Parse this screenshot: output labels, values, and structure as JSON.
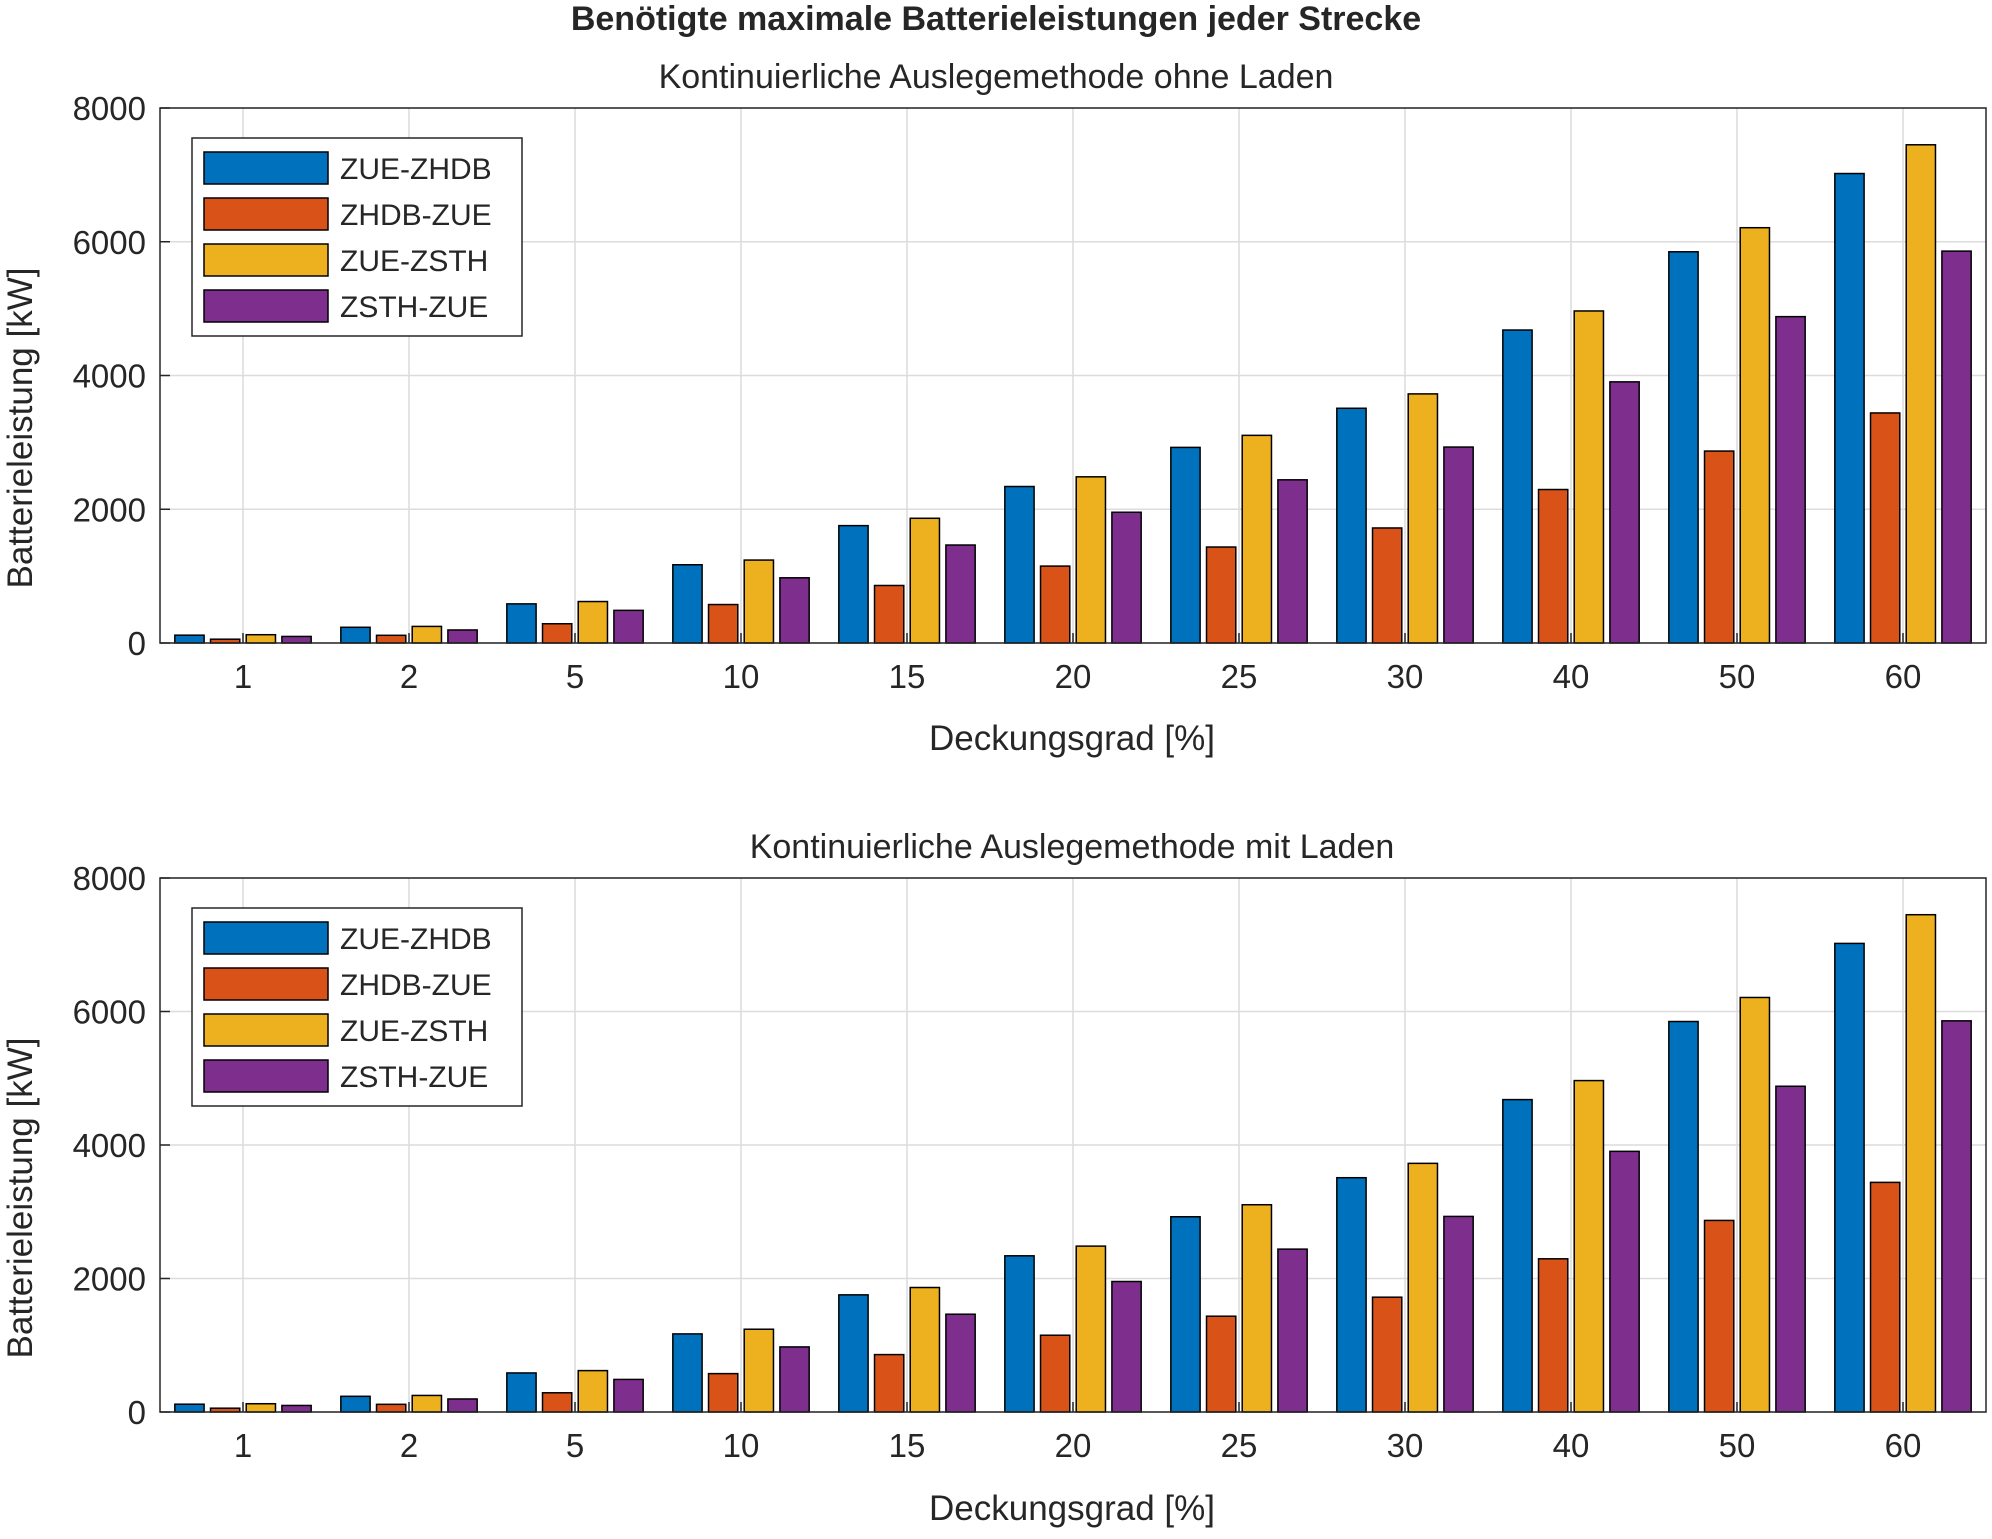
{
  "figure_title": "Benötigte maximale Batterieleistungen jeder Strecke",
  "series_colors": [
    "#0072BD",
    "#D95319",
    "#EDB120",
    "#7E2F8E"
  ],
  "chart_data": [
    {
      "type": "bar",
      "title": "Kontinuierliche Auslegemethode ohne Laden",
      "xlabel": "Deckungsgrad [%]",
      "ylabel": "Batterieleistung [kW]",
      "categories": [
        "1",
        "2",
        "5",
        "10",
        "15",
        "20",
        "25",
        "30",
        "40",
        "50",
        "60"
      ],
      "ylim": [
        0,
        8000
      ],
      "yticks": [
        "0",
        "2000",
        "4000",
        "6000",
        "8000"
      ],
      "grid": true,
      "legend_position": "top-left",
      "series": [
        {
          "name": "ZUE-ZHDB",
          "values": [
            117,
            235,
            585,
            1170,
            1755,
            2340,
            2925,
            3510,
            4680,
            5850,
            7020
          ]
        },
        {
          "name": "ZHDB-ZUE",
          "values": [
            57,
            115,
            288,
            575,
            860,
            1150,
            1435,
            1720,
            2295,
            2870,
            3440
          ]
        },
        {
          "name": "ZUE-ZSTH",
          "values": [
            124,
            248,
            620,
            1240,
            1865,
            2485,
            3105,
            3725,
            4965,
            6210,
            7450
          ]
        },
        {
          "name": "ZSTH-ZUE",
          "values": [
            98,
            195,
            488,
            975,
            1465,
            1955,
            2440,
            2930,
            3905,
            4880,
            5860
          ]
        }
      ]
    },
    {
      "type": "bar",
      "title": "Kontinuierliche Auslegemethode mit Laden",
      "xlabel": "Deckungsgrad [%]",
      "ylabel": "Batterieleistung [kW]",
      "categories": [
        "1",
        "2",
        "5",
        "10",
        "15",
        "20",
        "25",
        "30",
        "40",
        "50",
        "60"
      ],
      "ylim": [
        0,
        8000
      ],
      "yticks": [
        "0",
        "2000",
        "4000",
        "6000",
        "8000"
      ],
      "grid": true,
      "legend_position": "top-left",
      "series": [
        {
          "name": "ZUE-ZHDB",
          "values": [
            117,
            235,
            585,
            1170,
            1755,
            2340,
            2925,
            3510,
            4680,
            5850,
            7020
          ]
        },
        {
          "name": "ZHDB-ZUE",
          "values": [
            57,
            115,
            288,
            575,
            860,
            1150,
            1435,
            1720,
            2295,
            2870,
            3440
          ]
        },
        {
          "name": "ZUE-ZSTH",
          "values": [
            124,
            248,
            620,
            1240,
            1865,
            2485,
            3105,
            3725,
            4965,
            6210,
            7450
          ]
        },
        {
          "name": "ZSTH-ZUE",
          "values": [
            98,
            195,
            488,
            975,
            1465,
            1955,
            2440,
            2930,
            3905,
            4880,
            5860
          ]
        }
      ]
    }
  ]
}
